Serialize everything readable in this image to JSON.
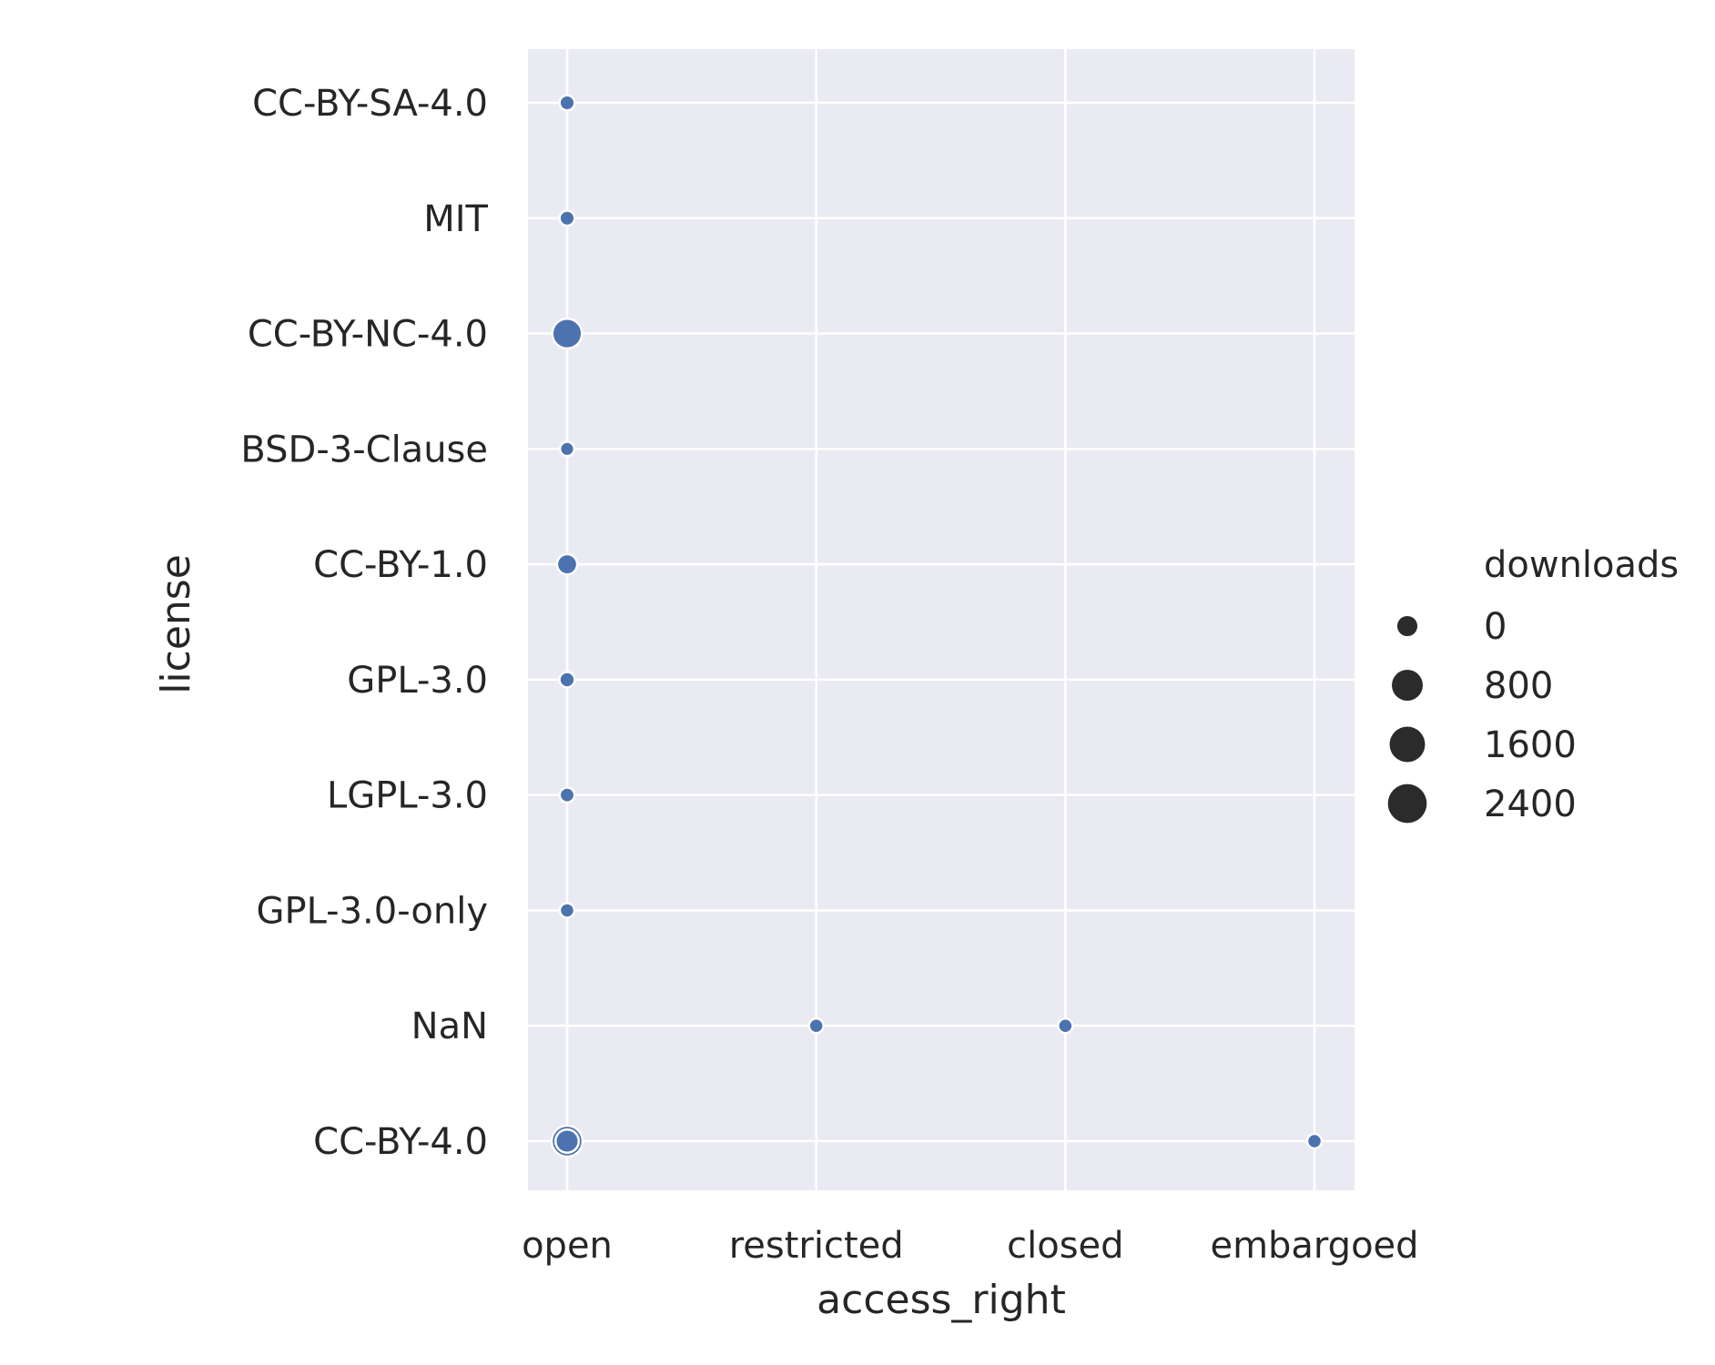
{
  "chart_data": {
    "type": "scatter",
    "title": "",
    "xlabel": "access_right",
    "ylabel": "license",
    "x_categories": [
      "open",
      "restricted",
      "closed",
      "embargoed"
    ],
    "y_categories": [
      "CC-BY-SA-4.0",
      "MIT",
      "CC-BY-NC-4.0",
      "BSD-3-Clause",
      "CC-BY-1.0",
      "GPL-3.0",
      "LGPL-3.0",
      "GPL-3.0-only",
      "NaN",
      "CC-BY-4.0"
    ],
    "size_variable": "downloads",
    "legend": {
      "title": "downloads",
      "placement": "right",
      "entries": [
        {
          "label": "0",
          "value": 0
        },
        {
          "label": "800",
          "value": 800
        },
        {
          "label": "1600",
          "value": 1600
        },
        {
          "label": "2400",
          "value": 2400
        }
      ]
    },
    "grid": true,
    "point_color": "#4c72b0",
    "points": [
      {
        "x": "open",
        "y": "CC-BY-SA-4.0",
        "downloads": 50
      },
      {
        "x": "open",
        "y": "MIT",
        "downloads": 50
      },
      {
        "x": "open",
        "y": "CC-BY-NC-4.0",
        "downloads": 2600
      },
      {
        "x": "open",
        "y": "BSD-3-Clause",
        "downloads": 20
      },
      {
        "x": "open",
        "y": "CC-BY-1.0",
        "downloads": 500
      },
      {
        "x": "open",
        "y": "GPL-3.0",
        "downloads": 60
      },
      {
        "x": "open",
        "y": "LGPL-3.0",
        "downloads": 40
      },
      {
        "x": "open",
        "y": "GPL-3.0-only",
        "downloads": 30
      },
      {
        "x": "restricted",
        "y": "NaN",
        "downloads": 30
      },
      {
        "x": "closed",
        "y": "NaN",
        "downloads": 30
      },
      {
        "x": "open",
        "y": "CC-BY-4.0",
        "downloads": 3000
      },
      {
        "x": "open",
        "y": "CC-BY-4.0",
        "downloads": 1000
      },
      {
        "x": "embargoed",
        "y": "CC-BY-4.0",
        "downloads": 30
      }
    ]
  }
}
